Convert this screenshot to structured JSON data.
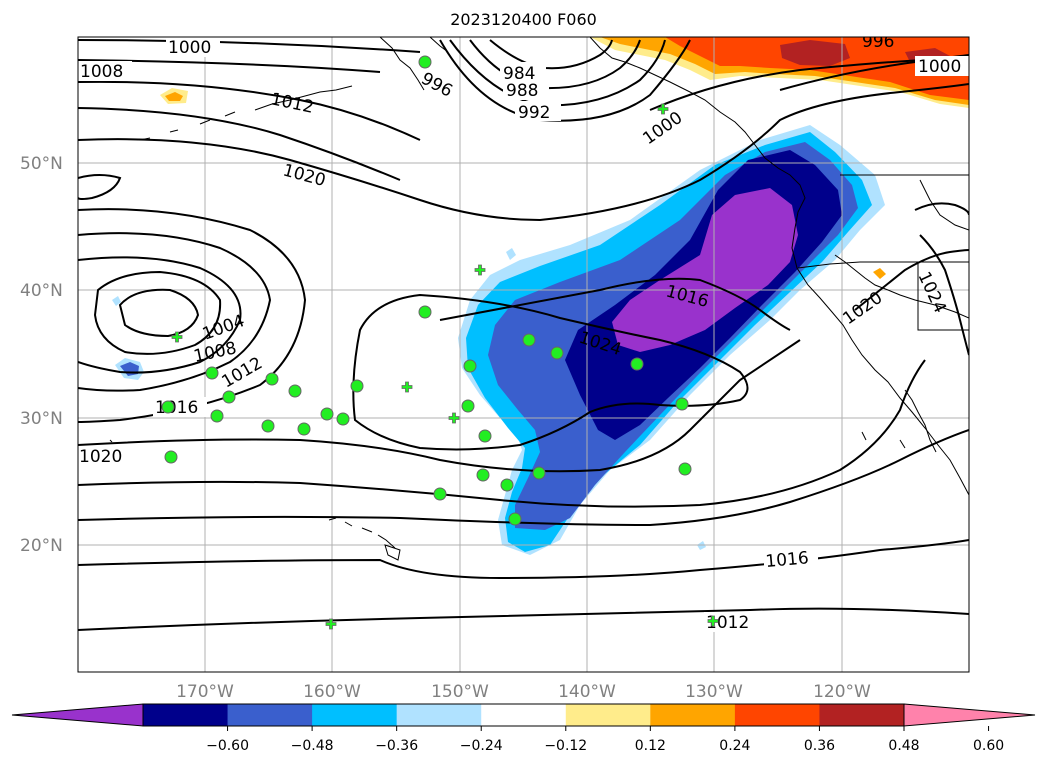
{
  "title": "2023120400 F060",
  "axes": {
    "lat_labels": [
      "50°N",
      "40°N",
      "30°N",
      "20°N"
    ],
    "lon_labels": [
      "170°W",
      "160°W",
      "150°W",
      "140°W",
      "130°W",
      "120°W"
    ],
    "tick_color": "#808080"
  },
  "contour_labels": [
    {
      "text": "1000"
    },
    {
      "text": "1008"
    },
    {
      "text": "1012"
    },
    {
      "text": "996"
    },
    {
      "text": "984"
    },
    {
      "text": "988"
    },
    {
      "text": "992"
    },
    {
      "text": "996"
    },
    {
      "text": "1000"
    },
    {
      "text": "1000"
    },
    {
      "text": "1020"
    },
    {
      "text": "1016"
    },
    {
      "text": "1024"
    },
    {
      "text": "1020"
    },
    {
      "text": "1004"
    },
    {
      "text": "1008"
    },
    {
      "text": "1012"
    },
    {
      "text": "1016"
    },
    {
      "text": "1020"
    },
    {
      "text": "1016"
    },
    {
      "text": "1012"
    },
    {
      "text": "1024"
    }
  ],
  "colorbar": {
    "colors": [
      "#9932cc",
      "#00008b",
      "#3a5fcd",
      "#00bfff",
      "#b0e2ff",
      "#ffffff",
      "#ffec8b",
      "#ffa500",
      "#ff4500",
      "#b22222",
      "#ff82ab"
    ],
    "tick_labels": [
      "−0.60",
      "−0.48",
      "−0.36",
      "−0.24",
      "−0.12",
      "0.12",
      "0.24",
      "0.36",
      "0.48",
      "0.60"
    ]
  },
  "markers": {
    "circle_color": "#22ee22",
    "plus_color": "#22ee22"
  }
}
